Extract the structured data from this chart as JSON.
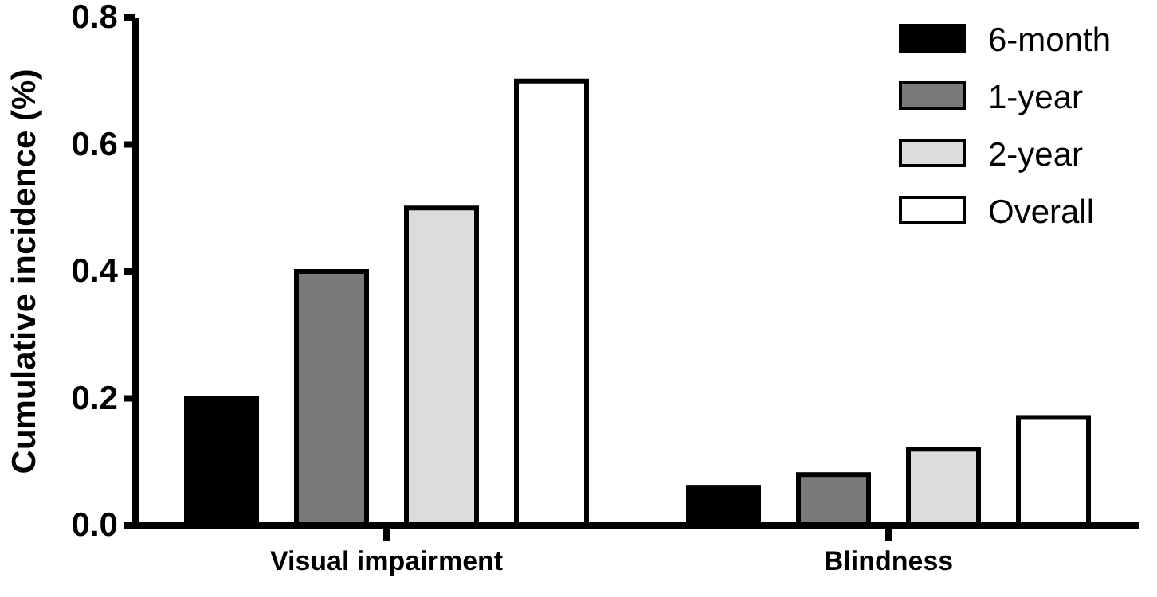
{
  "chart_data": {
    "type": "bar",
    "ylabel": "Cumulative incidence (%)",
    "categories": [
      "Visual impairment",
      "Blindness"
    ],
    "series": [
      {
        "name": "6-month",
        "color": "#000000",
        "values": [
          0.2,
          0.06
        ]
      },
      {
        "name": "1-year",
        "color": "#7a7a7a",
        "values": [
          0.4,
          0.08
        ]
      },
      {
        "name": "2-year",
        "color": "#dcdcdc",
        "values": [
          0.5,
          0.12
        ]
      },
      {
        "name": "Overall",
        "color": "#ffffff",
        "values": [
          0.7,
          0.17
        ]
      }
    ],
    "ylim": [
      0,
      0.8
    ],
    "yticks": [
      {
        "value": 0,
        "label": "0.0"
      },
      {
        "value": 0.2,
        "label": "0.2"
      },
      {
        "value": 0.4,
        "label": "0.4"
      },
      {
        "value": 0.6,
        "label": "0.6"
      },
      {
        "value": 0.8,
        "label": "0.8"
      }
    ],
    "grid": false,
    "legend": "top right"
  }
}
